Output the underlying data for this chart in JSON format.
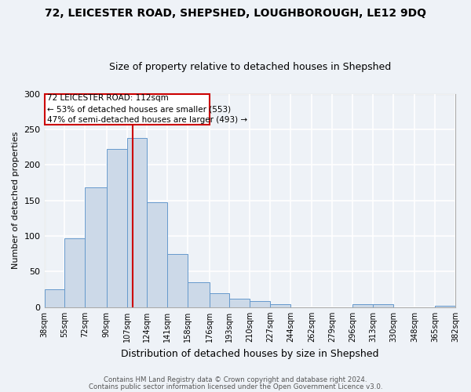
{
  "title": "72, LEICESTER ROAD, SHEPSHED, LOUGHBOROUGH, LE12 9DQ",
  "subtitle": "Size of property relative to detached houses in Shepshed",
  "xlabel": "Distribution of detached houses by size in Shepshed",
  "ylabel": "Number of detached properties",
  "bar_color": "#ccd9e8",
  "bar_edge_color": "#6699cc",
  "background_color": "#eef2f7",
  "plot_bg_color": "#eef2f7",
  "grid_color": "#ffffff",
  "bin_edges": [
    38,
    55,
    72,
    90,
    107,
    124,
    141,
    158,
    176,
    193,
    210,
    227,
    244,
    262,
    279,
    296,
    313,
    330,
    348,
    365,
    382
  ],
  "bin_labels": [
    "38sqm",
    "55sqm",
    "72sqm",
    "90sqm",
    "107sqm",
    "124sqm",
    "141sqm",
    "158sqm",
    "176sqm",
    "193sqm",
    "210sqm",
    "227sqm",
    "244sqm",
    "262sqm",
    "279sqm",
    "296sqm",
    "313sqm",
    "330sqm",
    "348sqm",
    "365sqm",
    "382sqm"
  ],
  "counts": [
    25,
    97,
    168,
    222,
    238,
    147,
    75,
    35,
    20,
    12,
    9,
    4,
    0,
    0,
    0,
    4,
    4,
    0,
    0,
    2
  ],
  "vline_x": 112,
  "vline_color": "#cc0000",
  "annotation_title": "72 LEICESTER ROAD: 112sqm",
  "annotation_line1": "← 53% of detached houses are smaller (553)",
  "annotation_line2": "47% of semi-detached houses are larger (493) →",
  "annotation_box_color": "#cc0000",
  "ylim": [
    0,
    300
  ],
  "yticks": [
    0,
    50,
    100,
    150,
    200,
    250,
    300
  ],
  "footnote1": "Contains HM Land Registry data © Crown copyright and database right 2024.",
  "footnote2": "Contains public sector information licensed under the Open Government Licence v3.0."
}
